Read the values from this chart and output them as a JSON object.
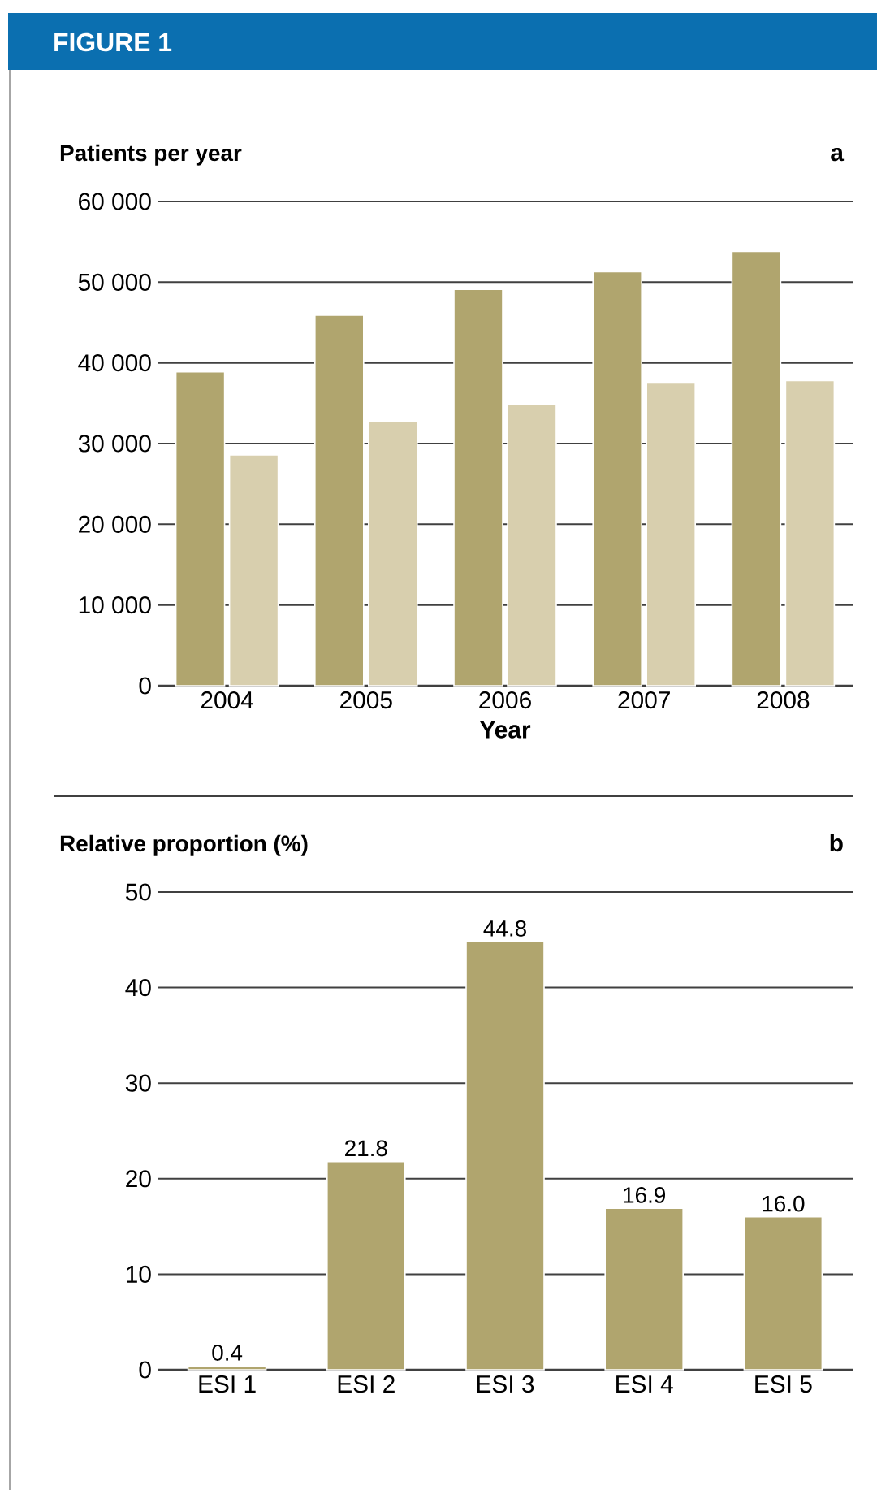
{
  "chart_data": [
    {
      "type": "bar",
      "title": "FIGURE 1",
      "ylabel": "Patients per year",
      "xlabel": "Year",
      "annotations": [
        "a"
      ],
      "categories": [
        "2004",
        "2005",
        "2006",
        "2007",
        "2008"
      ],
      "series": [
        {
          "color": "#b0a56e",
          "values": [
            38900,
            45900,
            49100,
            51300,
            53800
          ]
        },
        {
          "color": "#d8cfae",
          "values": [
            28600,
            32700,
            34900,
            37500,
            37800
          ]
        }
      ],
      "ylim": [
        0,
        60000
      ],
      "yticks": [
        0,
        {
          "value": 10000,
          "label": "10 000"
        },
        {
          "value": 20000,
          "label": "20 000"
        },
        {
          "value": 30000,
          "label": "30 000"
        },
        {
          "value": 40000,
          "label": "40 000"
        },
        {
          "value": 50000,
          "label": "50 000"
        },
        {
          "value": 60000,
          "label": "60 000"
        }
      ],
      "grid": "y"
    },
    {
      "type": "bar",
      "ylabel": "Relative proportion (%)",
      "annotations": [
        "b"
      ],
      "categories": [
        "ESI 1",
        "ESI 2",
        "ESI 3",
        "ESI 4",
        "ESI 5"
      ],
      "values": [
        0.4,
        21.8,
        44.8,
        16.9,
        16.0
      ],
      "color": "#b0a56e",
      "value_labels": [
        "0.4",
        "21.8",
        "44.8",
        "16.9",
        "16.0"
      ],
      "ylim": [
        0,
        50
      ],
      "yticks": [
        0,
        10,
        20,
        30,
        40,
        50
      ],
      "grid": "y"
    }
  ]
}
